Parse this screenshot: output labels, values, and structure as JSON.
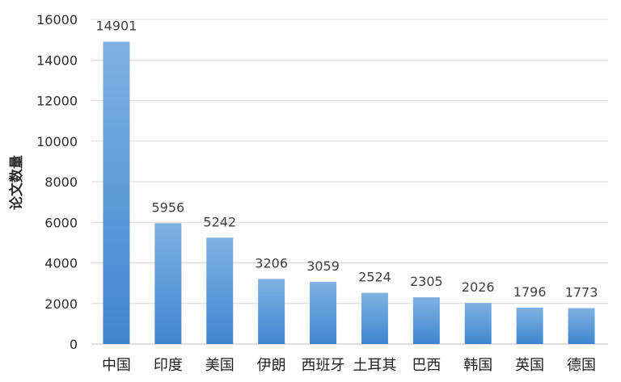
{
  "chart_data": {
    "type": "bar",
    "title": "",
    "xlabel": "",
    "ylabel": "论文数量",
    "ylim": [
      0,
      16000
    ],
    "yticks": [
      0,
      2000,
      4000,
      6000,
      8000,
      10000,
      12000,
      14000,
      16000
    ],
    "grid": true,
    "legend": "none",
    "categories": [
      "中国",
      "印度",
      "美国",
      "伊朗",
      "西班牙",
      "土耳其",
      "巴西",
      "韩国",
      "英国",
      "德国"
    ],
    "values": [
      14901,
      5956,
      5242,
      3206,
      3059,
      2524,
      2305,
      2026,
      1796,
      1773
    ],
    "colors": {
      "bar_top": "#7fb2e3",
      "bar_bottom": "#3f86cf",
      "grid": "#d9d9d9",
      "axis": "#bfbfbf"
    }
  }
}
